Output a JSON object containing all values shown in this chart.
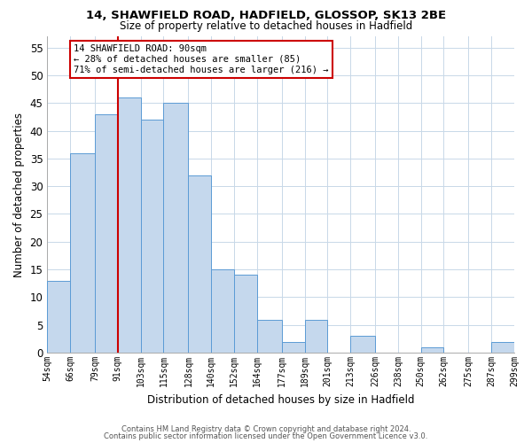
{
  "title": "14, SHAWFIELD ROAD, HADFIELD, GLOSSOP, SK13 2BE",
  "subtitle": "Size of property relative to detached houses in Hadfield",
  "xlabel": "Distribution of detached houses by size in Hadfield",
  "ylabel": "Number of detached properties",
  "bar_color": "#c5d8ed",
  "bar_edge_color": "#5b9bd5",
  "bin_edges": [
    54,
    66,
    79,
    91,
    103,
    115,
    128,
    140,
    152,
    164,
    177,
    189,
    201,
    213,
    226,
    238,
    250,
    262,
    275,
    287,
    299
  ],
  "bar_heights": [
    13,
    36,
    43,
    46,
    42,
    45,
    32,
    15,
    14,
    6,
    2,
    6,
    0,
    3,
    0,
    0,
    1,
    0,
    0,
    2
  ],
  "tick_labels": [
    "54sqm",
    "66sqm",
    "79sqm",
    "91sqm",
    "103sqm",
    "115sqm",
    "128sqm",
    "140sqm",
    "152sqm",
    "164sqm",
    "177sqm",
    "189sqm",
    "201sqm",
    "213sqm",
    "226sqm",
    "238sqm",
    "250sqm",
    "262sqm",
    "275sqm",
    "287sqm",
    "299sqm"
  ],
  "vline_x": 91,
  "vline_color": "#cc0000",
  "ylim": [
    0,
    57
  ],
  "yticks": [
    0,
    5,
    10,
    15,
    20,
    25,
    30,
    35,
    40,
    45,
    50,
    55
  ],
  "annotation_title": "14 SHAWFIELD ROAD: 90sqm",
  "annotation_line1": "← 28% of detached houses are smaller (85)",
  "annotation_line2": "71% of semi-detached houses are larger (216) →",
  "annotation_box_color": "#ffffff",
  "annotation_box_edge": "#cc0000",
  "footer1": "Contains HM Land Registry data © Crown copyright and database right 2024.",
  "footer2": "Contains public sector information licensed under the Open Government Licence v3.0.",
  "background_color": "#ffffff",
  "grid_color": "#c8d8e8"
}
